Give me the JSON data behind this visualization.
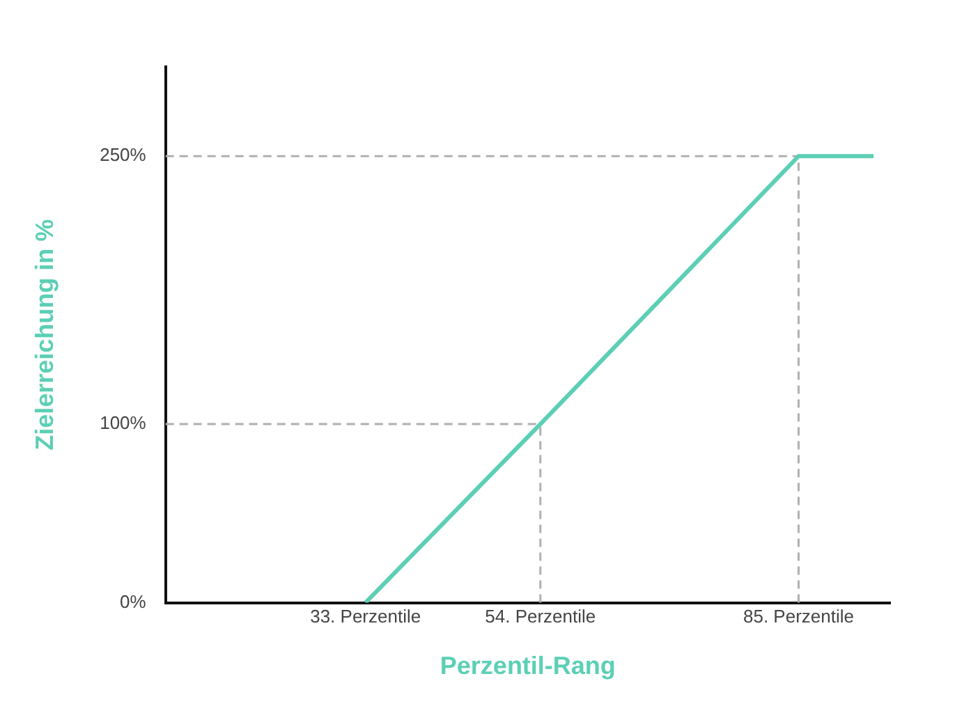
{
  "chart_data": {
    "type": "line",
    "xlabel": "Perzentil-Rang",
    "ylabel": "Zielerreichung in %",
    "x": [
      33,
      54,
      85,
      94
    ],
    "series": [
      {
        "color": "#5ccfb5",
        "values": [
          0,
          100,
          250,
          250
        ]
      }
    ],
    "xlim": [
      9,
      96
    ],
    "ylim": [
      0,
      300
    ],
    "xticks": [
      {
        "value": 33,
        "label": "33. Perzentile"
      },
      {
        "value": 54,
        "label": "54. Perzentile"
      },
      {
        "value": 85,
        "label": "85. Perzentile"
      }
    ],
    "yticks": [
      {
        "value": 0,
        "label": "0%"
      },
      {
        "value": 100,
        "label": "100%"
      },
      {
        "value": 250,
        "label": "250%"
      }
    ],
    "ref_lines": [
      {
        "axis": "y",
        "value": 100,
        "color": "#b0b0b0",
        "line_style": "dashed"
      },
      {
        "axis": "y",
        "value": 250,
        "color": "#b0b0b0",
        "line_style": "dashed"
      },
      {
        "axis": "x",
        "value": 54,
        "color": "#b0b0b0",
        "line_style": "dashed"
      },
      {
        "axis": "x",
        "value": 85,
        "color": "#b0b0b0",
        "line_style": "dashed"
      }
    ],
    "grid": false,
    "legend": false,
    "marker": "none",
    "line_style": "solid"
  }
}
